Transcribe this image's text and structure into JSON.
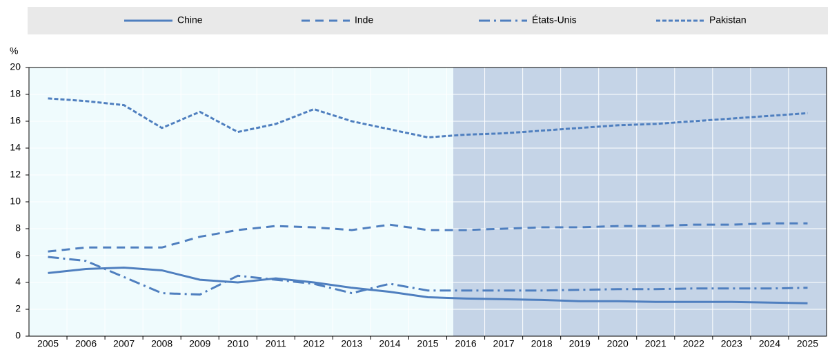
{
  "chart_data": {
    "type": "line",
    "y_label": "%",
    "categories": [
      "2005",
      "2006",
      "2007",
      "2008",
      "2009",
      "2010",
      "2011",
      "2012",
      "2013",
      "2014",
      "2015",
      "2016",
      "2017",
      "2018",
      "2019",
      "2020",
      "2021",
      "2022",
      "2023",
      "2024",
      "2025"
    ],
    "series": [
      {
        "name": "Chine",
        "color": "#4f7fbf",
        "dash": "solid",
        "values": [
          4.7,
          5.0,
          5.1,
          4.9,
          4.2,
          4.0,
          4.3,
          4.0,
          3.6,
          3.3,
          2.9,
          2.8,
          2.75,
          2.7,
          2.6,
          2.6,
          2.55,
          2.55,
          2.55,
          2.5,
          2.45
        ]
      },
      {
        "name": "Inde",
        "color": "#4f7fbf",
        "dash": "dashed",
        "values": [
          6.3,
          6.6,
          6.6,
          6.6,
          7.4,
          7.9,
          8.2,
          8.1,
          7.9,
          8.3,
          7.9,
          7.9,
          8.0,
          8.1,
          8.1,
          8.2,
          8.2,
          8.3,
          8.3,
          8.4,
          8.4
        ]
      },
      {
        "name": "États-Unis",
        "color": "#4f7fbf",
        "dash": "dashdot",
        "values": [
          5.9,
          5.6,
          4.4,
          3.2,
          3.1,
          4.5,
          4.2,
          3.9,
          3.2,
          3.9,
          3.4,
          3.4,
          3.4,
          3.4,
          3.45,
          3.5,
          3.5,
          3.55,
          3.55,
          3.55,
          3.6
        ]
      },
      {
        "name": "Pakistan",
        "color": "#4f7fbf",
        "dash": "dotted",
        "values": [
          17.7,
          17.5,
          17.2,
          15.5,
          16.7,
          15.2,
          15.8,
          16.9,
          16.0,
          15.4,
          14.8,
          15.0,
          15.1,
          15.3,
          15.5,
          15.7,
          15.8,
          16.0,
          16.2,
          16.4,
          16.6
        ]
      }
    ],
    "ylim": [
      0,
      20
    ],
    "yticks": [
      0,
      2,
      4,
      6,
      8,
      10,
      12,
      14,
      16,
      18,
      20
    ],
    "grid": true
  }
}
